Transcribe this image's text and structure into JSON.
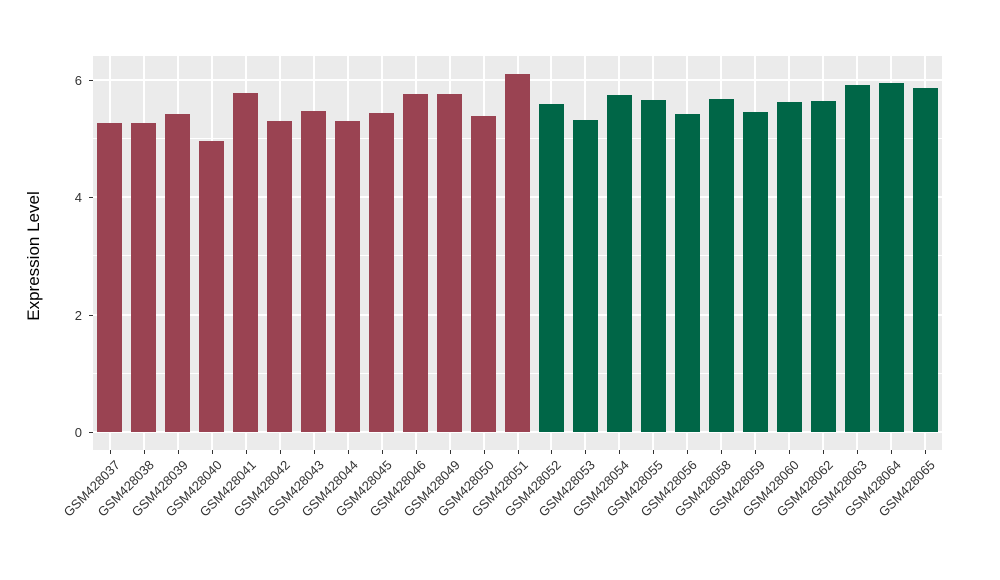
{
  "chart_data": {
    "type": "bar",
    "title": "",
    "xlabel": "",
    "ylabel": "Expression Level",
    "ylim": [
      -0.305,
      6.405
    ],
    "yticks": [
      0,
      2,
      4,
      6
    ],
    "yticks_minor": [
      1,
      3,
      5
    ],
    "grid": "on",
    "legend": "none",
    "panel_bg": "#EBEBEB",
    "grid_color": "#FFFFFF",
    "axis_text_color": "#333333",
    "categories": [
      "GSM428037",
      "GSM428038",
      "GSM428039",
      "GSM428040",
      "GSM428041",
      "GSM428042",
      "GSM428043",
      "GSM428044",
      "GSM428045",
      "GSM428046",
      "GSM428049",
      "GSM428050",
      "GSM428051",
      "GSM428052",
      "GSM428053",
      "GSM428054",
      "GSM428055",
      "GSM428056",
      "GSM428058",
      "GSM428059",
      "GSM428060",
      "GSM428062",
      "GSM428063",
      "GSM428064",
      "GSM428065"
    ],
    "values": [
      5.26,
      5.26,
      5.42,
      4.96,
      5.78,
      5.3,
      5.47,
      5.3,
      5.44,
      5.75,
      5.75,
      5.38,
      6.1,
      5.58,
      5.32,
      5.74,
      5.66,
      5.42,
      5.68,
      5.45,
      5.62,
      5.64,
      5.91,
      5.94,
      5.86
    ],
    "groups": [
      "group1",
      "group1",
      "group1",
      "group1",
      "group1",
      "group1",
      "group1",
      "group1",
      "group1",
      "group1",
      "group1",
      "group1",
      "group1",
      "group2",
      "group2",
      "group2",
      "group2",
      "group2",
      "group2",
      "group2",
      "group2",
      "group2",
      "group2",
      "group2",
      "group2"
    ],
    "group_colors": {
      "group1": "#9A4352",
      "group2": "#006647"
    }
  }
}
